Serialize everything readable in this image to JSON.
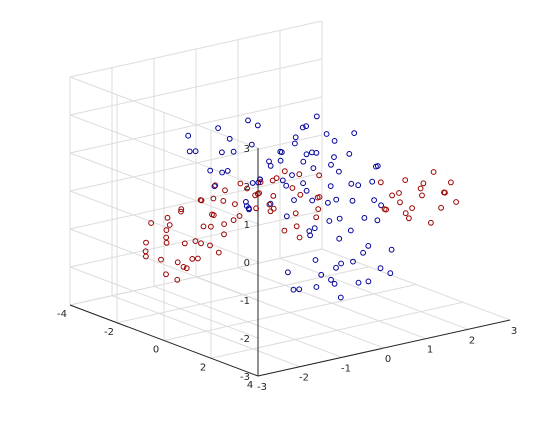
{
  "chart_data": {
    "type": "scatter3d",
    "title": "",
    "xlabel": "",
    "ylabel": "",
    "zlabel": "",
    "grid": true,
    "box": "back-planes",
    "view": "default 3-D (az -37.5, el 30)",
    "xlim": [
      -3,
      3
    ],
    "ylim": [
      -4,
      4
    ],
    "zlim": [
      -3,
      3
    ],
    "x_ticks": [
      "-3",
      "-2",
      "-1",
      "0",
      "1",
      "2",
      "3"
    ],
    "y_ticks": [
      "-4",
      "-2",
      "0",
      "2",
      "4"
    ],
    "z_ticks": [
      "-3",
      "-2",
      "-1",
      "0",
      "1",
      "2",
      "3"
    ],
    "marker": "open-circle",
    "series": [
      {
        "color": "#00009a",
        "points": [
          [
            -2.5,
            0.2,
            1.9
          ],
          [
            -2.2,
            -0.4,
            2.1
          ],
          [
            -1.9,
            0.5,
            1.8
          ],
          [
            -1.6,
            -0.2,
            2.2
          ],
          [
            -1.3,
            0.7,
            1.9
          ],
          [
            -1.0,
            0.0,
            2.3
          ],
          [
            -0.7,
            0.9,
            1.6
          ],
          [
            -0.4,
            0.3,
            1.4
          ],
          [
            -2.1,
            1.1,
            1.5
          ],
          [
            -1.5,
            1.4,
            1.2
          ],
          [
            -2.0,
            1.7,
            0.8
          ],
          [
            -1.7,
            1.2,
            0.5
          ],
          [
            -1.2,
            0.8,
            0.9
          ],
          [
            -2.3,
            0.9,
            1.1
          ],
          [
            -0.9,
            1.3,
            1.0
          ],
          [
            -0.5,
            1.6,
            0.7
          ],
          [
            -1.1,
            -0.6,
            1.7
          ],
          [
            -1.8,
            -0.8,
            1.5
          ],
          [
            -0.2,
            0.6,
            1.8
          ],
          [
            -1.4,
            0.1,
            1.6
          ],
          [
            -0.6,
            -0.3,
            2.0
          ],
          [
            -2.4,
            1.4,
            1.6
          ],
          [
            -1.9,
            0.0,
            1.2
          ],
          [
            -0.3,
            1.1,
            1.3
          ],
          [
            -0.6,
            2.4,
            -1.3
          ],
          [
            -0.2,
            2.1,
            -1.6
          ],
          [
            0.1,
            2.5,
            -1.1
          ],
          [
            0.4,
            2.2,
            -1.8
          ],
          [
            0.7,
            2.6,
            -1.4
          ],
          [
            -0.9,
            2.0,
            -1.7
          ],
          [
            -0.4,
            1.8,
            -1.1
          ],
          [
            0.2,
            1.6,
            -1.5
          ],
          [
            0.8,
            1.9,
            -1.0
          ],
          [
            1.1,
            2.3,
            -1.7
          ],
          [
            -0.7,
            1.4,
            -1.9
          ],
          [
            -0.1,
            1.3,
            -2.0
          ],
          [
            0.5,
            1.2,
            -0.9
          ],
          [
            0.9,
            1.5,
            -1.3
          ],
          [
            -1.0,
            1.7,
            -1.3
          ],
          [
            0.3,
            2.8,
            -1.6
          ],
          [
            -0.3,
            2.7,
            -1.9
          ],
          [
            0.6,
            1.1,
            -1.6
          ],
          [
            1.3,
            2.0,
            -1.2
          ],
          [
            0.0,
            1.9,
            -1.8
          ],
          [
            0.8,
            0.3,
            0.2
          ],
          [
            1.1,
            0.0,
            -0.3
          ],
          [
            1.4,
            0.4,
            0.1
          ],
          [
            0.6,
            0.6,
            -0.6
          ],
          [
            1.0,
            0.8,
            -0.9
          ],
          [
            1.6,
            -0.2,
            -0.5
          ],
          [
            1.9,
            0.1,
            0.0
          ],
          [
            1.2,
            -0.4,
            0.5
          ],
          [
            0.5,
            0.1,
            0.7
          ],
          [
            1.8,
            0.5,
            -0.9
          ],
          [
            2.1,
            -0.1,
            0.3
          ],
          [
            0.9,
            1.0,
            0.4
          ],
          [
            1.5,
            0.9,
            -0.2
          ],
          [
            0.7,
            -0.2,
            -1.0
          ],
          [
            1.3,
            0.2,
            0.9
          ],
          [
            1.7,
            0.7,
            0.6
          ],
          [
            2.0,
            0.3,
            -0.6
          ],
          [
            0.4,
            0.9,
            0.0
          ],
          [
            1.1,
            1.2,
            -0.5
          ],
          [
            1.5,
            -0.6,
            0.2
          ],
          [
            1.2,
            -1.6,
            1.2
          ],
          [
            1.6,
            -1.3,
            1.0
          ],
          [
            1.9,
            -1.5,
            0.7
          ],
          [
            1.4,
            -1.8,
            0.4
          ],
          [
            0.9,
            -1.4,
            0.9
          ],
          [
            2.2,
            -1.2,
            0.9
          ],
          [
            1.7,
            -1.9,
            1.3
          ],
          [
            1.0,
            -1.1,
            1.4
          ],
          [
            2.0,
            -1.7,
            0.2
          ],
          [
            1.3,
            -1.2,
            0.6
          ],
          [
            -0.6,
            -0.2,
            0.6
          ],
          [
            -0.3,
            0.4,
            -0.3
          ],
          [
            0.0,
            -0.4,
            0.9
          ],
          [
            -0.8,
            0.6,
            0.2
          ],
          [
            0.2,
            0.2,
            0.4
          ],
          [
            -0.4,
            0.8,
            0.9
          ],
          [
            -1.0,
            0.2,
            0.7
          ],
          [
            0.3,
            -0.7,
            0.1
          ],
          [
            -0.1,
            1.0,
            -0.6
          ],
          [
            -0.7,
            -0.5,
            -0.2
          ],
          [
            0.6,
            -0.9,
            -0.4
          ],
          [
            0.1,
            -1.0,
            0.6
          ],
          [
            -0.2,
            1.3,
            0.3
          ],
          [
            0.4,
            1.4,
            -0.3
          ],
          [
            -0.5,
            0.0,
            1.1
          ],
          [
            0.8,
            -0.5,
            0.9
          ],
          [
            -1.2,
            0.4,
            0.1
          ],
          [
            0.2,
            0.5,
            -0.9
          ]
        ]
      },
      {
        "color": "#9a0000",
        "points": [
          [
            -2.1,
            -1.5,
            -1.0
          ],
          [
            -1.8,
            -1.9,
            -0.7
          ],
          [
            -2.4,
            -1.2,
            -1.3
          ],
          [
            -1.6,
            -1.3,
            -1.5
          ],
          [
            -2.0,
            -0.9,
            -0.9
          ],
          [
            -1.3,
            -1.7,
            -1.2
          ],
          [
            -2.3,
            -1.8,
            -0.5
          ],
          [
            -1.5,
            -2.1,
            -1.8
          ],
          [
            -1.9,
            -1.0,
            -1.6
          ],
          [
            -2.6,
            -1.5,
            -1.1
          ],
          [
            -1.1,
            -1.4,
            -0.8
          ],
          [
            -1.7,
            -1.6,
            -0.3
          ],
          [
            -2.2,
            -2.2,
            -1.5
          ],
          [
            -1.4,
            -0.9,
            -1.1
          ],
          [
            -2.5,
            -0.8,
            -0.6
          ],
          [
            -1.0,
            -2.0,
            -1.4
          ],
          [
            -1.9,
            -1.4,
            -2.0
          ],
          [
            -2.3,
            -1.1,
            -0.2
          ],
          [
            -1.2,
            -1.1,
            -0.4
          ],
          [
            -1.6,
            -2.4,
            -1.0
          ],
          [
            -0.8,
            -1.6,
            -1.6
          ],
          [
            -2.0,
            -1.7,
            -1.9
          ],
          [
            -1.4,
            -1.3,
            0.0
          ],
          [
            -2.7,
            -1.3,
            -0.8
          ],
          [
            -1.8,
            -0.7,
            -1.3
          ],
          [
            -1.1,
            -1.8,
            -0.2
          ],
          [
            -2.2,
            -0.6,
            -1.4
          ],
          [
            -1.5,
            -1.0,
            -0.6
          ],
          [
            -1.3,
            -2.3,
            -0.5
          ],
          [
            -0.9,
            -1.2,
            -1.0
          ],
          [
            -1.6,
            -0.4,
            0.3
          ],
          [
            -1.2,
            -0.2,
            0.1
          ],
          [
            -0.9,
            -0.5,
            0.5
          ],
          [
            -1.4,
            0.1,
            -0.2
          ],
          [
            -1.0,
            0.3,
            0.4
          ],
          [
            -0.6,
            -0.3,
            0.2
          ],
          [
            -1.8,
            -0.1,
            0.0
          ],
          [
            -0.7,
            0.0,
            0.6
          ],
          [
            -1.1,
            -0.8,
            0.3
          ],
          [
            -0.4,
            -0.6,
            0.1
          ],
          [
            -1.3,
            0.5,
            0.7
          ],
          [
            -0.8,
            0.6,
            0.0
          ],
          [
            -1.5,
            -0.5,
            0.6
          ],
          [
            -0.5,
            0.2,
            -0.1
          ],
          [
            -1.7,
            0.2,
            0.4
          ],
          [
            -0.3,
            -0.2,
            0.5
          ],
          [
            -1.2,
            0.7,
            0.2
          ],
          [
            -0.9,
            0.9,
            0.5
          ],
          [
            -0.6,
            0.5,
            0.8
          ],
          [
            -1.4,
            -0.3,
            -0.4
          ],
          [
            0.0,
            0.1,
            0.3
          ],
          [
            -0.2,
            0.6,
            -0.2
          ],
          [
            0.3,
            -0.1,
            0.0
          ],
          [
            -0.1,
            -0.7,
            -0.3
          ],
          [
            0.2,
            0.9,
            0.2
          ],
          [
            -0.4,
            1.0,
            -0.4
          ],
          [
            0.1,
            -0.4,
            0.6
          ],
          [
            0.4,
            0.4,
            -0.5
          ],
          [
            -0.7,
            -0.9,
            -0.5
          ],
          [
            0.5,
            -0.5,
            0.4
          ],
          [
            0.0,
            1.2,
            0.0
          ],
          [
            -0.5,
            1.3,
            -0.6
          ],
          [
            0.3,
            0.7,
            0.7
          ],
          [
            -0.3,
            0.3,
            -0.7
          ],
          [
            0.6,
            0.1,
            -0.1
          ],
          [
            1.2,
            2.2,
            0.3
          ],
          [
            1.5,
            2.0,
            0.0
          ],
          [
            1.8,
            2.4,
            0.2
          ],
          [
            1.3,
            2.6,
            -0.1
          ],
          [
            2.0,
            2.1,
            0.4
          ],
          [
            1.6,
            2.7,
            0.5
          ],
          [
            2.2,
            2.5,
            -0.2
          ],
          [
            1.1,
            1.9,
            0.6
          ],
          [
            1.9,
            1.8,
            -0.3
          ],
          [
            2.4,
            2.3,
            0.1
          ],
          [
            1.4,
            2.4,
            0.7
          ],
          [
            2.1,
            2.8,
            0.3
          ],
          [
            1.7,
            1.6,
            0.1
          ],
          [
            2.5,
            2.6,
            -0.1
          ],
          [
            1.0,
            2.3,
            0.0
          ],
          [
            1.6,
            2.2,
            -0.4
          ],
          [
            2.3,
            2.0,
            0.6
          ],
          [
            1.9,
            2.6,
            -0.5
          ],
          [
            2.6,
            2.2,
            0.3
          ],
          [
            1.3,
            1.7,
            -0.2
          ]
        ]
      }
    ]
  }
}
